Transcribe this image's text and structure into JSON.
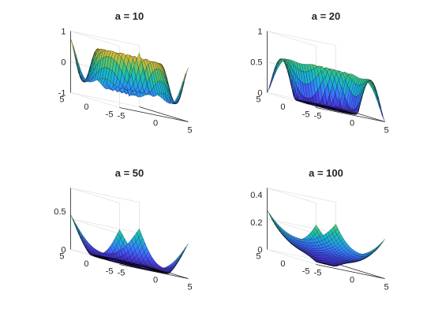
{
  "colormap": [
    "#3e26a8",
    "#4746eb",
    "#3e6ffe",
    "#2b96f2",
    "#1cb2d3",
    "#1fc0ad",
    "#49c67b",
    "#a0c24f",
    "#e0b838",
    "#fdc930",
    "#f9fb14"
  ],
  "chart_data": [
    {
      "type": "surface",
      "title": "a = 10",
      "parameter_a": 10,
      "x": [
        -5,
        5
      ],
      "y": [
        -5,
        5
      ],
      "zlim": [
        -1,
        1
      ],
      "xticks": [
        "-5",
        "0",
        "5"
      ],
      "yticks": [
        "-5",
        "0",
        "5"
      ],
      "zticks": [
        "-1",
        "0",
        "1"
      ]
    },
    {
      "type": "surface",
      "title": "a = 20",
      "parameter_a": 20,
      "x": [
        -5,
        5
      ],
      "y": [
        -5,
        5
      ],
      "zlim": [
        0,
        1
      ],
      "xticks": [
        "-5",
        "0",
        "5"
      ],
      "yticks": [
        "-5",
        "0",
        "5"
      ],
      "zticks": [
        "0",
        "0.5",
        "1"
      ]
    },
    {
      "type": "surface",
      "title": "a = 50",
      "parameter_a": 50,
      "x": [
        -5,
        5
      ],
      "y": [
        -5,
        5
      ],
      "zlim": [
        0,
        0.8
      ],
      "xticks": [
        "-5",
        "0",
        "5"
      ],
      "yticks": [
        "-5",
        "0",
        "5"
      ],
      "zticks": [
        "0",
        "0.5"
      ]
    },
    {
      "type": "surface",
      "title": "a = 100",
      "parameter_a": 100,
      "x": [
        -5,
        5
      ],
      "y": [
        -5,
        5
      ],
      "zlim": [
        0,
        0.45
      ],
      "xticks": [
        "-5",
        "0",
        "5"
      ],
      "yticks": [
        "-5",
        "0",
        "5"
      ],
      "zticks": [
        "0",
        "0.2",
        "0.4"
      ]
    }
  ]
}
